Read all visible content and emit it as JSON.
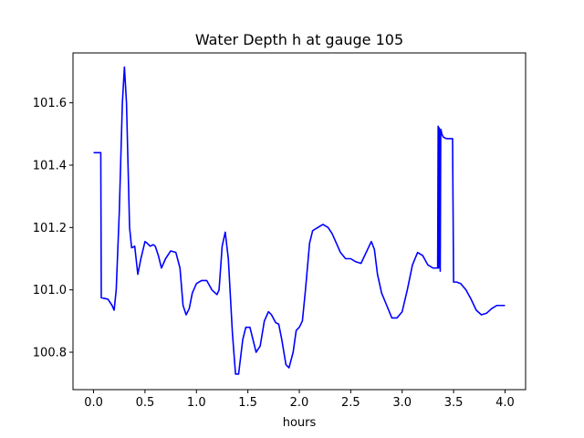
{
  "chart_data": {
    "type": "line",
    "title": "Water Depth h at gauge 105",
    "xlabel": "hours",
    "ylabel": "",
    "xlim": [
      -0.2,
      4.2
    ],
    "ylim": [
      100.68,
      101.76
    ],
    "grid": false,
    "xticks": [
      0.0,
      0.5,
      1.0,
      1.5,
      2.0,
      2.5,
      3.0,
      3.5,
      4.0
    ],
    "xtick_labels": [
      "0.0",
      "0.5",
      "1.0",
      "1.5",
      "2.0",
      "2.5",
      "3.0",
      "3.5",
      "4.0"
    ],
    "yticks": [
      100.8,
      101.0,
      101.2,
      101.4,
      101.6
    ],
    "ytick_labels": [
      "100.8",
      "101.0",
      "101.2",
      "101.4",
      "101.6"
    ],
    "series": [
      {
        "color": "#0000ff",
        "x": [
          0.0,
          0.06,
          0.07,
          0.075,
          0.14,
          0.18,
          0.2,
          0.22,
          0.25,
          0.28,
          0.3,
          0.32,
          0.35,
          0.37,
          0.4,
          0.43,
          0.46,
          0.5,
          0.52,
          0.55,
          0.58,
          0.6,
          0.63,
          0.66,
          0.7,
          0.75,
          0.8,
          0.84,
          0.87,
          0.9,
          0.93,
          0.96,
          1.0,
          1.05,
          1.1,
          1.15,
          1.2,
          1.22,
          1.25,
          1.28,
          1.31,
          1.35,
          1.38,
          1.41,
          1.45,
          1.48,
          1.52,
          1.55,
          1.58,
          1.62,
          1.66,
          1.7,
          1.73,
          1.77,
          1.8,
          1.83,
          1.87,
          1.9,
          1.94,
          1.97,
          2.0,
          2.03,
          2.06,
          2.1,
          2.13,
          2.18,
          2.23,
          2.28,
          2.32,
          2.36,
          2.4,
          2.45,
          2.5,
          2.55,
          2.6,
          2.65,
          2.7,
          2.73,
          2.76,
          2.8,
          2.85,
          2.9,
          2.95,
          3.0,
          3.05,
          3.1,
          3.15,
          3.2,
          3.25,
          3.3,
          3.345,
          3.35,
          3.355,
          3.36,
          3.37,
          3.375,
          3.38,
          3.385,
          3.4,
          3.43,
          3.47,
          3.49,
          3.5,
          3.505,
          3.53,
          3.57,
          3.62,
          3.67,
          3.72,
          3.77,
          3.82,
          3.87,
          3.92,
          3.95,
          4.0
        ],
        "values": [
          101.44,
          101.44,
          101.44,
          100.975,
          100.97,
          100.95,
          100.935,
          101.0,
          101.25,
          101.6,
          101.715,
          101.6,
          101.2,
          101.135,
          101.14,
          101.05,
          101.1,
          101.155,
          101.15,
          101.14,
          101.145,
          101.14,
          101.11,
          101.07,
          101.1,
          101.125,
          101.12,
          101.07,
          100.95,
          100.92,
          100.94,
          100.99,
          101.02,
          101.03,
          101.03,
          101.0,
          100.985,
          101.0,
          101.14,
          101.185,
          101.1,
          100.86,
          100.73,
          100.73,
          100.84,
          100.88,
          100.88,
          100.84,
          100.8,
          100.82,
          100.9,
          100.93,
          100.92,
          100.895,
          100.89,
          100.84,
          100.76,
          100.75,
          100.8,
          100.87,
          100.88,
          100.9,
          101.0,
          101.15,
          101.19,
          101.2,
          101.21,
          101.2,
          101.18,
          101.15,
          101.12,
          101.1,
          101.1,
          101.09,
          101.085,
          101.12,
          101.155,
          101.13,
          101.05,
          100.99,
          100.95,
          100.91,
          100.91,
          100.93,
          101.0,
          101.08,
          101.12,
          101.11,
          101.08,
          101.07,
          101.07,
          101.525,
          101.07,
          101.52,
          101.06,
          101.515,
          101.51,
          101.5,
          101.49,
          101.485,
          101.485,
          101.485,
          101.025,
          101.025,
          101.025,
          101.02,
          101.0,
          100.97,
          100.935,
          100.92,
          100.925,
          100.94,
          100.95,
          100.95,
          100.95
        ]
      }
    ]
  }
}
